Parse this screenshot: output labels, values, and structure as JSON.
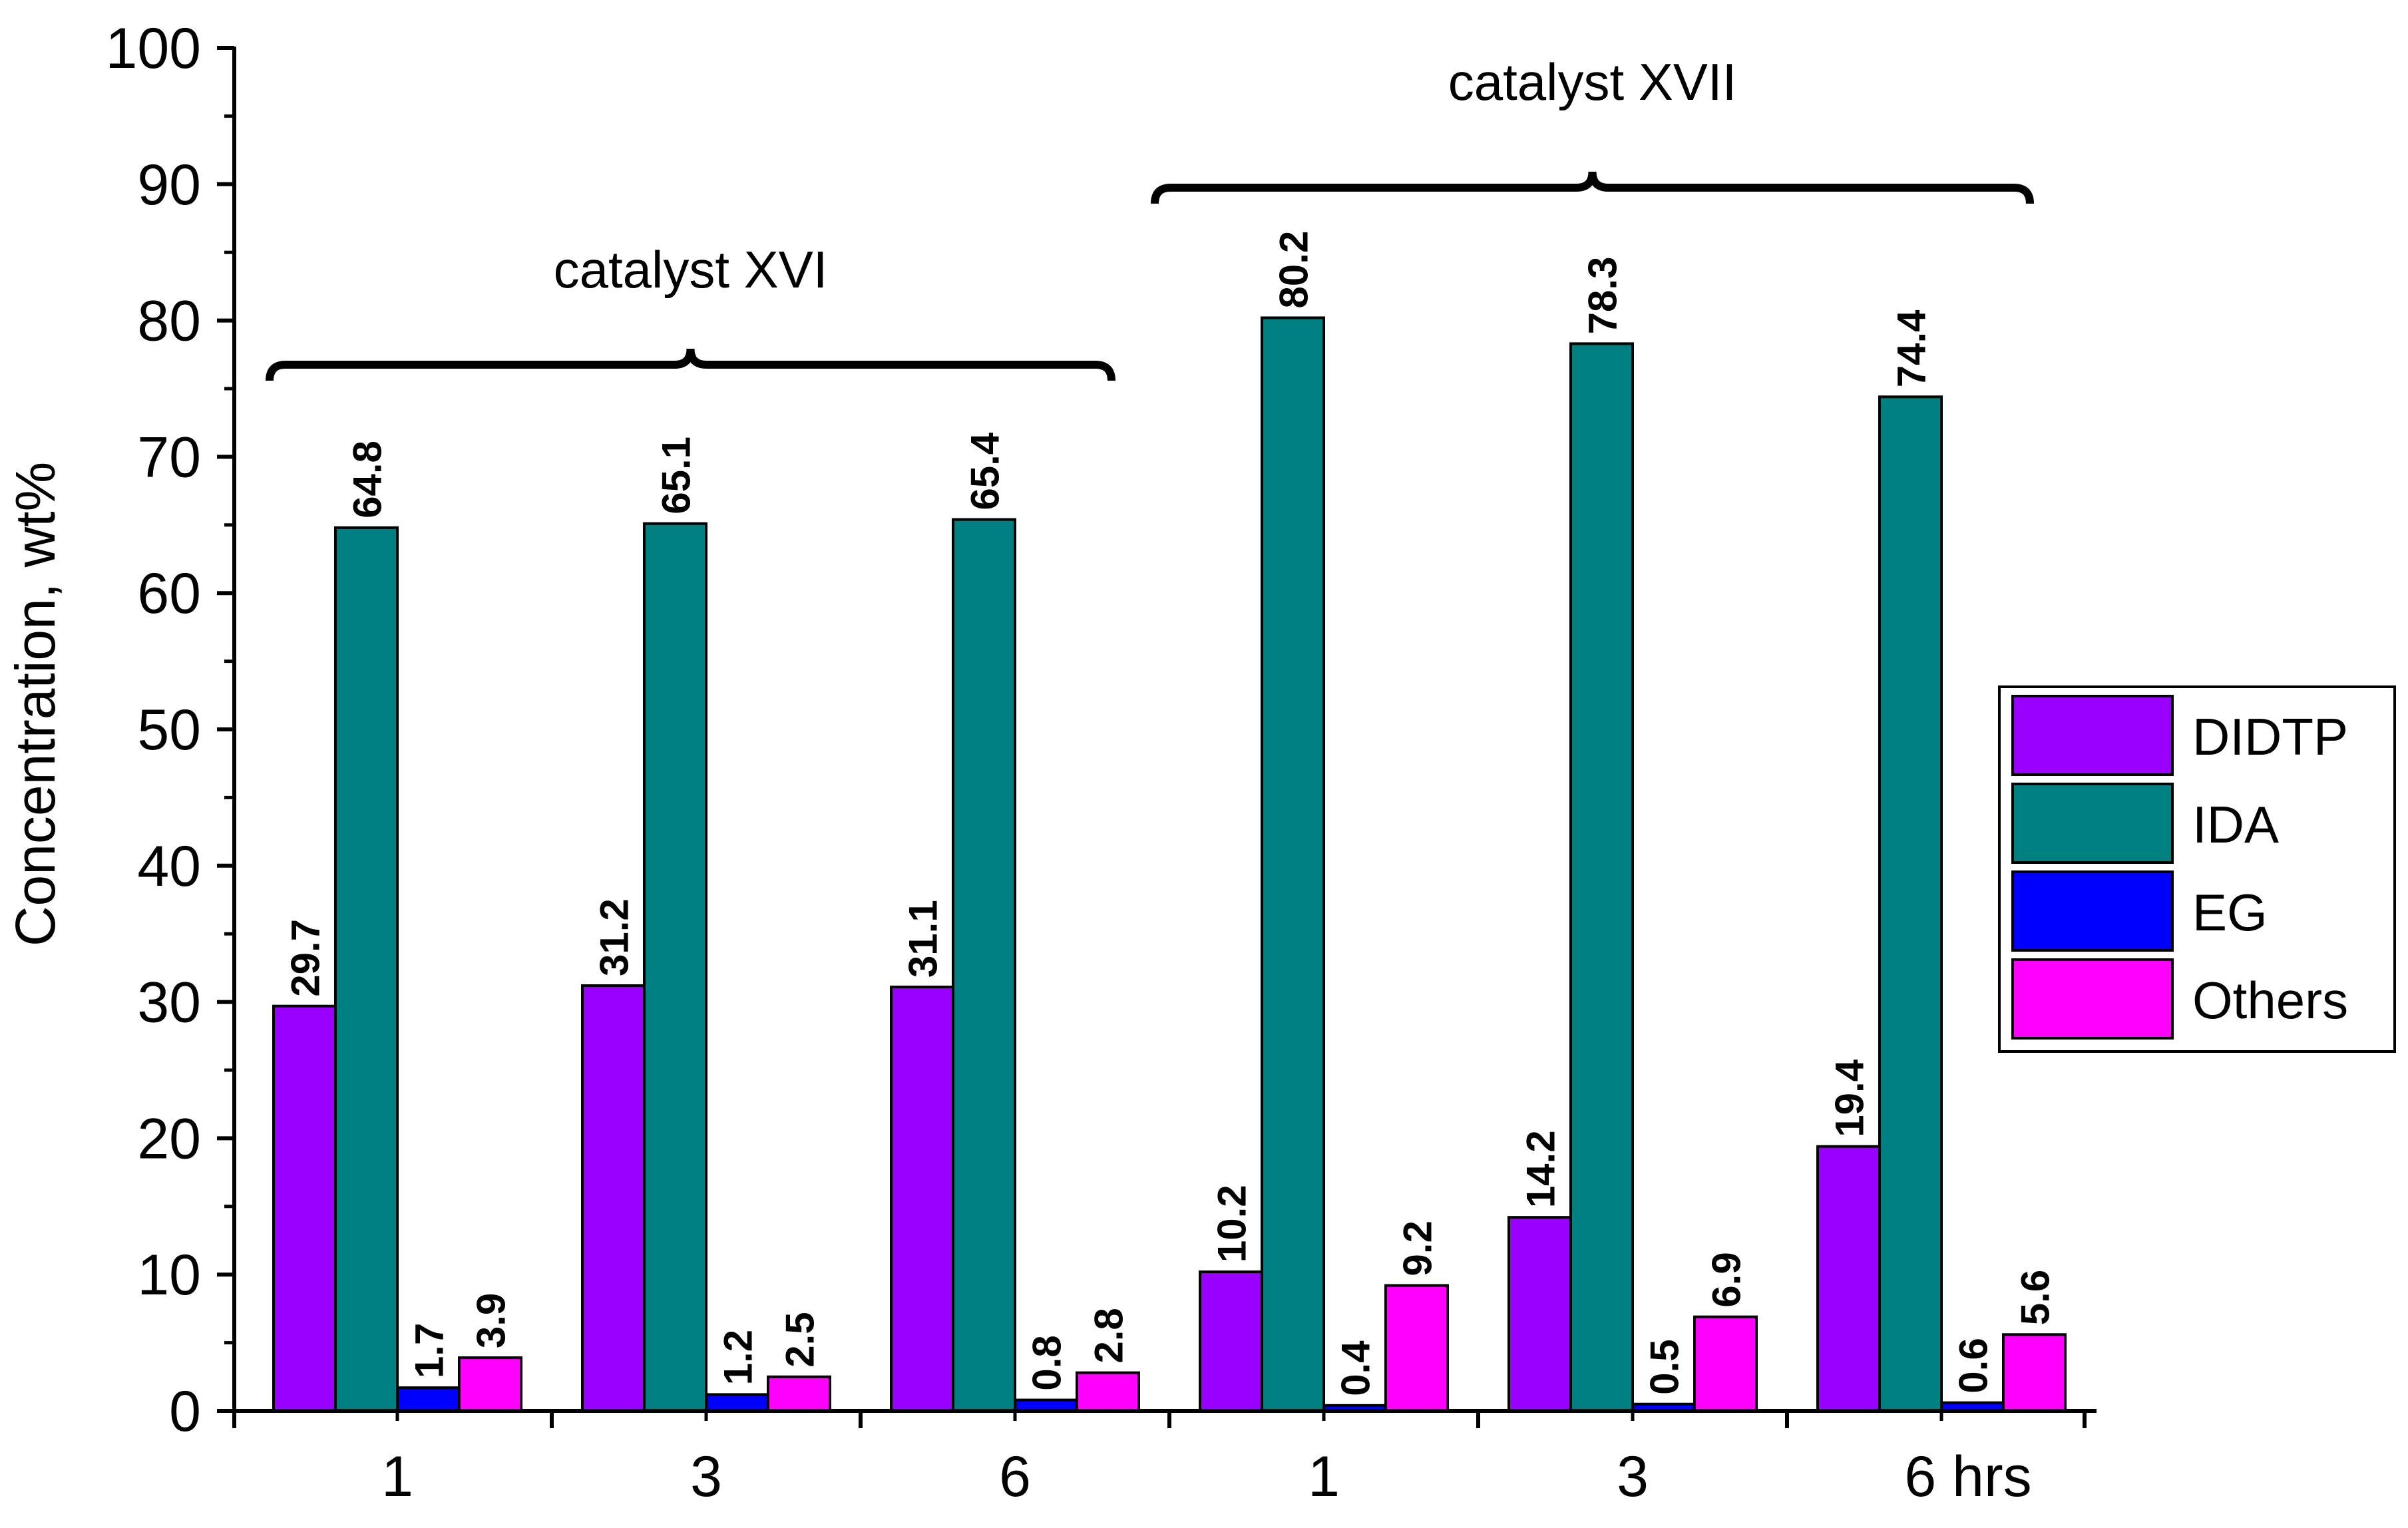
{
  "chart_data": {
    "type": "bar",
    "ylabel": "Concentration, wt%",
    "xlabel": "",
    "ylim": [
      0,
      100
    ],
    "yticks": [
      0,
      10,
      20,
      30,
      40,
      50,
      60,
      70,
      80,
      90,
      100
    ],
    "categories": [
      "1",
      "3",
      "6",
      "1",
      "3",
      "6 hrs"
    ],
    "groups": [
      {
        "label": "catalyst XVI",
        "category_indices": [
          0,
          1,
          2
        ]
      },
      {
        "label": "catalyst XVII",
        "category_indices": [
          3,
          4,
          5
        ]
      }
    ],
    "series": [
      {
        "name": "DIDTP",
        "color": "#9900FF",
        "values": [
          29.7,
          31.2,
          31.1,
          10.2,
          14.2,
          19.4
        ],
        "labels": [
          "29.7",
          "31.2",
          "31.1",
          "10.2",
          "14.2",
          "19.4"
        ]
      },
      {
        "name": "IDA",
        "color": "#008080",
        "values": [
          64.8,
          65.1,
          65.4,
          80.2,
          78.3,
          74.4
        ],
        "labels": [
          "64.8",
          "65.1",
          "65.4",
          "80.2",
          "78.3",
          "74.4"
        ]
      },
      {
        "name": "EG",
        "color": "#0000FF",
        "values": [
          1.7,
          1.2,
          0.8,
          0.4,
          0.5,
          0.6
        ],
        "labels": [
          "1.7",
          "1.2",
          "0.8",
          "0.4",
          "0.5",
          "0.6"
        ]
      },
      {
        "name": "Others",
        "color": "#FF00FF",
        "values": [
          3.9,
          2.5,
          2.8,
          9.2,
          6.9,
          5.6
        ],
        "labels": [
          "3.9",
          "2.5",
          "2.8",
          "9.2",
          "6.9",
          "5.6"
        ]
      }
    ],
    "legend_position": "right",
    "grid": false
  }
}
